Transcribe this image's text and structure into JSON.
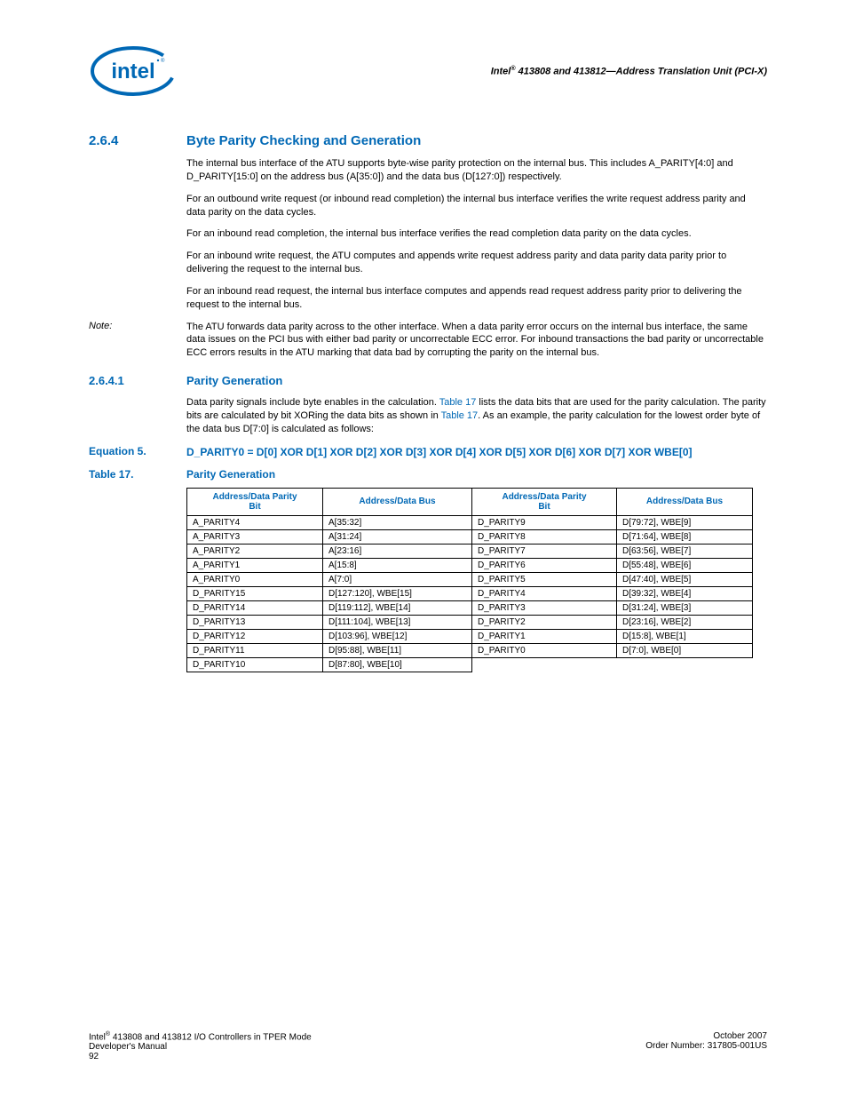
{
  "header": {
    "doc_title_html": "Intel<span class='sup'>®</span> 413808 and 413812—Address Translation Unit (PCI-X)"
  },
  "logo": {
    "stroke": "#0068b5",
    "text": "intel"
  },
  "section": {
    "num": "2.6.4",
    "title": "Byte Parity Checking and Generation",
    "paras": [
      "The internal bus interface of the ATU supports byte-wise parity protection on the internal bus. This includes A_PARITY[4:0] and D_PARITY[15:0] on the address bus (A[35:0]) and the data bus (D[127:0]) respectively.",
      "For an outbound write request (or inbound read completion) the internal bus interface verifies the write request address parity and data parity on the data cycles.",
      "For an inbound read completion, the internal bus interface verifies the read completion data parity on the data cycles.",
      "For an inbound write request, the ATU computes and appends write request address parity and data parity data parity prior to delivering the request to the internal bus.",
      "For an inbound read request, the internal bus interface computes and appends read request address parity prior to delivering the request to the internal bus."
    ]
  },
  "note": {
    "label": "Note:",
    "body": "The ATU forwards data parity across to the other interface. When a data parity error occurs on the internal bus interface, the same data issues on the PCI bus with either bad parity or uncorrectable ECC error. For inbound transactions the bad parity or uncorrectable ECC errors results in the ATU marking that data bad by corrupting the parity on the internal bus."
  },
  "subsection": {
    "num": "2.6.4.1",
    "title": "Parity Generation",
    "para_html": "Data parity signals include byte enables in the calculation. <span class='xref'>Table 17</span> lists the data bits that are used for the parity calculation. The parity bits are calculated by bit XORing the data bits as shown in <span class='xref'>Table 17</span>. As an example, the parity calculation for the lowest order byte of the data bus D[7:0] is calculated as follows:"
  },
  "equation": {
    "label": "Equation 5.",
    "body": "D_PARITY0 = D[0] XOR D[1] XOR D[2] XOR D[3] XOR D[4] XOR D[5] XOR D[6] XOR D[7] XOR WBE[0]"
  },
  "table": {
    "label": "Table 17.",
    "title": "Parity Generation",
    "columns": [
      "Address/Data Parity Bit",
      "Address/Data Bus",
      "Address/Data Parity Bit",
      "Address/Data Bus"
    ],
    "col_widths": [
      "140px",
      "155px",
      "150px",
      "140px"
    ],
    "header_color": "#0068b5",
    "border_color": "#000000",
    "font_size": 10,
    "rows": [
      [
        "A_PARITY4",
        "A[35:32]",
        "D_PARITY9",
        "D[79:72], WBE[9]"
      ],
      [
        "A_PARITY3",
        "A[31:24]",
        "D_PARITY8",
        "D[71:64], WBE[8]"
      ],
      [
        "A_PARITY2",
        "A[23:16]",
        "D_PARITY7",
        "D[63:56], WBE[7]"
      ],
      [
        "A_PARITY1",
        "A[15:8]",
        "D_PARITY6",
        "D[55:48], WBE[6]"
      ],
      [
        "A_PARITY0",
        "A[7:0]",
        "D_PARITY5",
        "D[47:40], WBE[5]"
      ],
      [
        "D_PARITY15",
        "D[127:120], WBE[15]",
        "D_PARITY4",
        "D[39:32], WBE[4]"
      ],
      [
        "D_PARITY14",
        "D[119:112], WBE[14]",
        "D_PARITY3",
        "D[31:24], WBE[3]"
      ],
      [
        "D_PARITY13",
        "D[111:104], WBE[13]",
        "D_PARITY2",
        "D[23:16], WBE[2]"
      ],
      [
        "D_PARITY12",
        "D[103:96], WBE[12]",
        "D_PARITY1",
        "D[15:8], WBE[1]"
      ],
      [
        "D_PARITY11",
        "D[95:88], WBE[11]",
        "D_PARITY0",
        "D[7:0], WBE[0]"
      ],
      [
        "D_PARITY10",
        "D[87:80], WBE[10]",
        "",
        ""
      ]
    ]
  },
  "footer": {
    "left_line1_html": "Intel<span class='sup'>®</span> 413808 and 413812 I/O Controllers in TPER Mode",
    "left_line2": "Developer's Manual",
    "left_line3": "92",
    "right_line1": "October 2007",
    "right_line2": "Order Number: 317805-001US"
  },
  "colors": {
    "accent": "#0068b5",
    "text": "#000000",
    "background": "#ffffff"
  }
}
